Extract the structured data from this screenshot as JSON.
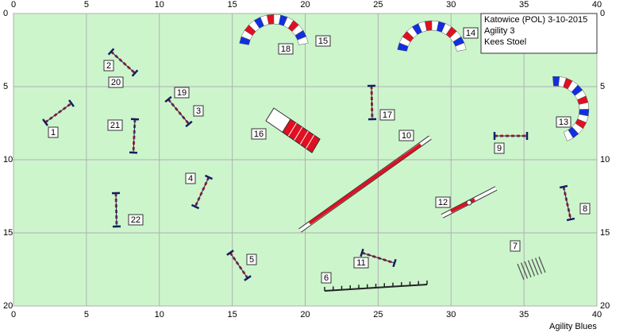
{
  "course": {
    "axes": {
      "xticks": [
        0,
        5,
        10,
        15,
        20,
        25,
        30,
        35,
        40
      ],
      "yticks": [
        0,
        5,
        10,
        15,
        20
      ]
    },
    "info": [
      "Katowice (POL) 3-10-2015",
      "Agility 3",
      "Kees Stoel"
    ],
    "footer": "Agility Blues",
    "labels": [
      "1",
      "2",
      "3",
      "4",
      "5",
      "6",
      "7",
      "8",
      "9",
      "10",
      "11",
      "12",
      "13",
      "14",
      "15",
      "16",
      "17",
      "18",
      "19",
      "20",
      "21",
      "22"
    ]
  }
}
